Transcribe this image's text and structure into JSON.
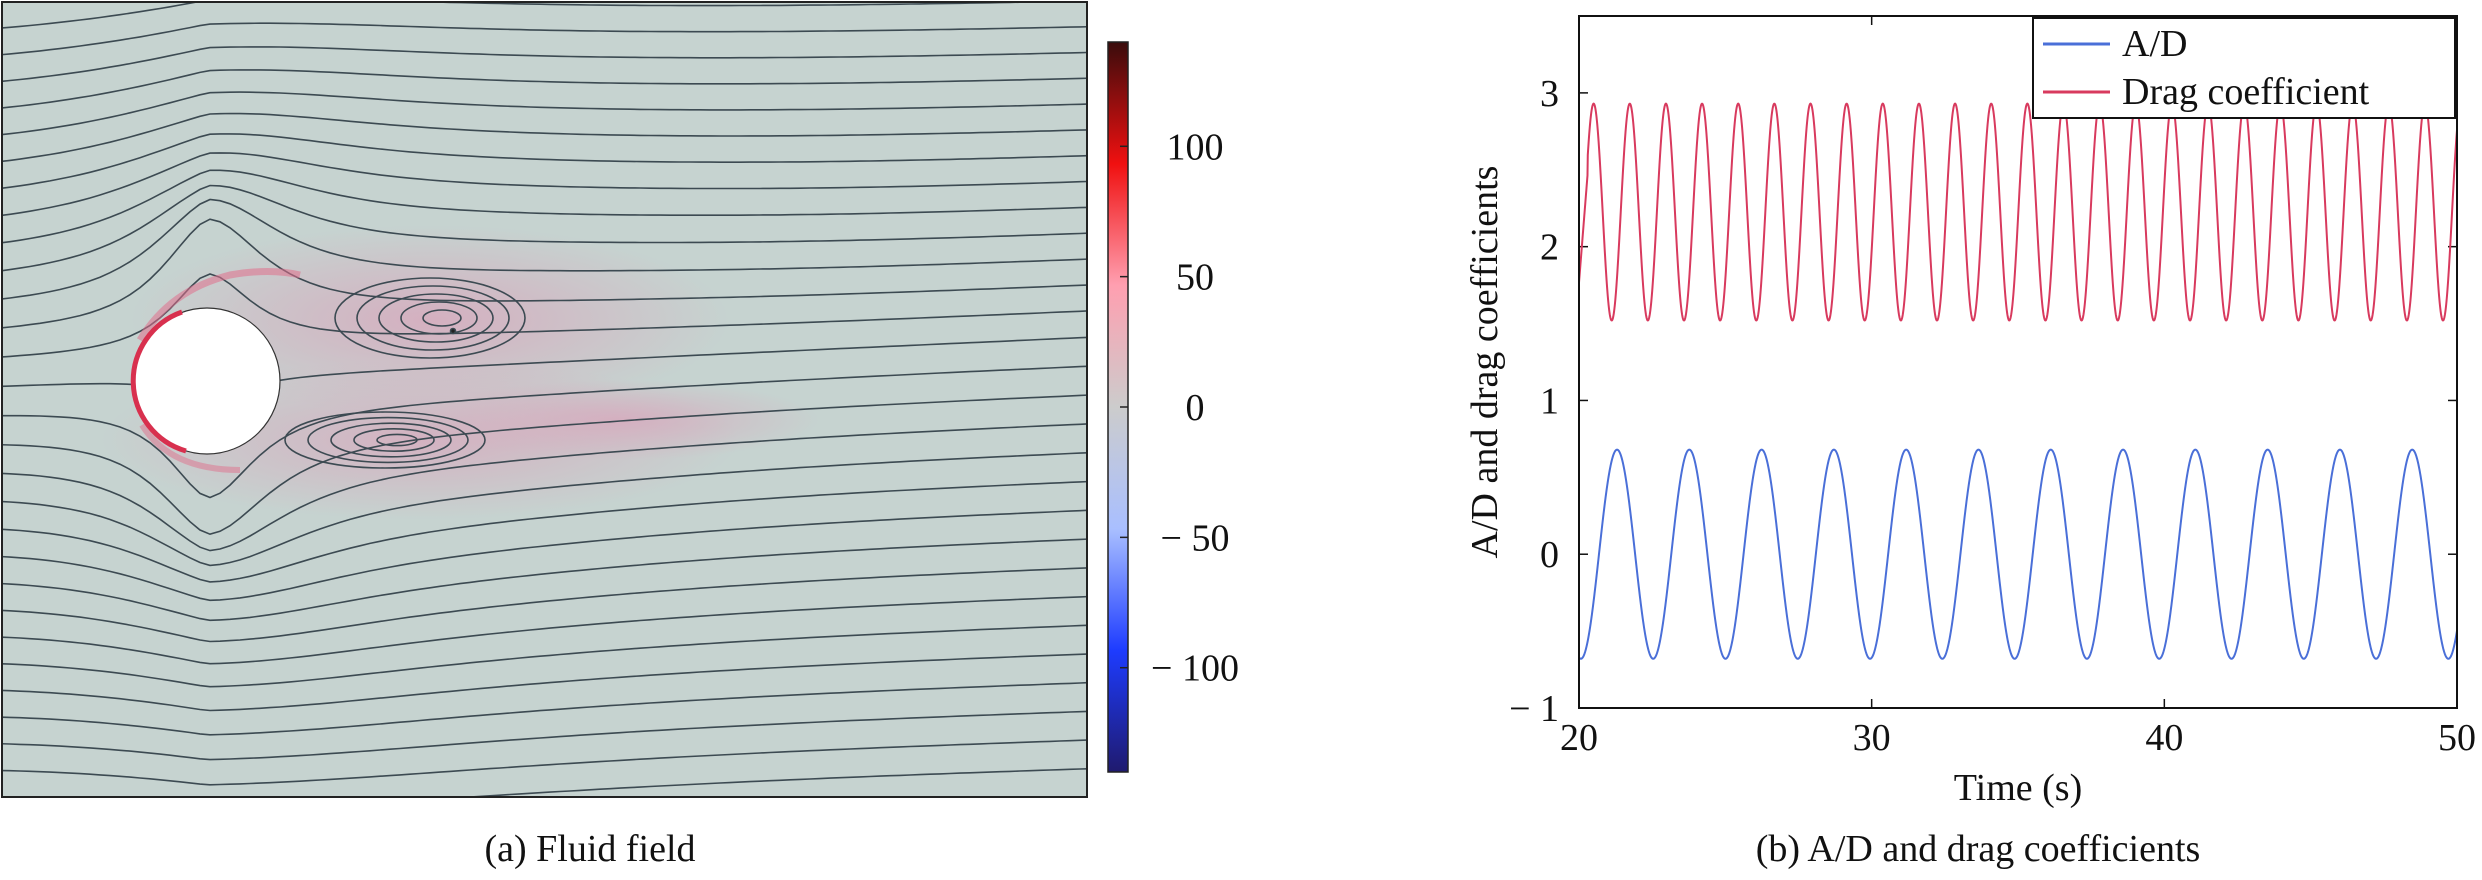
{
  "panels": {
    "a_caption": "(a) Fluid field",
    "b_caption": "(b) A/D and drag coefficients"
  },
  "colorbar": {
    "min": -140,
    "max": 140,
    "ticks": [
      {
        "value": 100,
        "label": "100"
      },
      {
        "value": 50,
        "label": "50"
      },
      {
        "value": 0,
        "label": "0"
      },
      {
        "value": -50,
        "label": "− 50"
      },
      {
        "value": -100,
        "label": "− 100"
      }
    ],
    "colors": [
      "#1f1a6e",
      "#1e3cff",
      "#a9bfff",
      "#cccccc",
      "#ff9fb0",
      "#f01010",
      "#3a0c0c"
    ]
  },
  "flow_field": {
    "background": "#c6d3d0",
    "line_color": "#3c4a52"
  },
  "chart_data": {
    "type": "line",
    "xlabel": "Time (s)",
    "ylabel": "A/D and drag coefficients",
    "xlim": [
      20,
      50
    ],
    "ylim": [
      -1,
      3.5
    ],
    "xticks": [
      {
        "value": 20,
        "label": "20"
      },
      {
        "value": 30,
        "label": "30"
      },
      {
        "value": 40,
        "label": "40"
      },
      {
        "value": 50,
        "label": "50"
      }
    ],
    "yticks": [
      {
        "value": -1,
        "label": "− 1"
      },
      {
        "value": 0,
        "label": "0"
      },
      {
        "value": 1,
        "label": "1"
      },
      {
        "value": 2,
        "label": "2"
      },
      {
        "value": 3,
        "label": "3"
      }
    ],
    "legend": "top-right",
    "series": [
      {
        "name": "A/D",
        "color": "#4a6fd8",
        "mean": 0.0,
        "amplitude": 0.68,
        "period": 2.47,
        "peak_at": 21.3
      },
      {
        "name": "Drag coefficient",
        "color": "#d83a5e",
        "mean": 2.225,
        "amplitude": 0.705,
        "period": 1.235,
        "peak_at": 20.5
      }
    ]
  }
}
